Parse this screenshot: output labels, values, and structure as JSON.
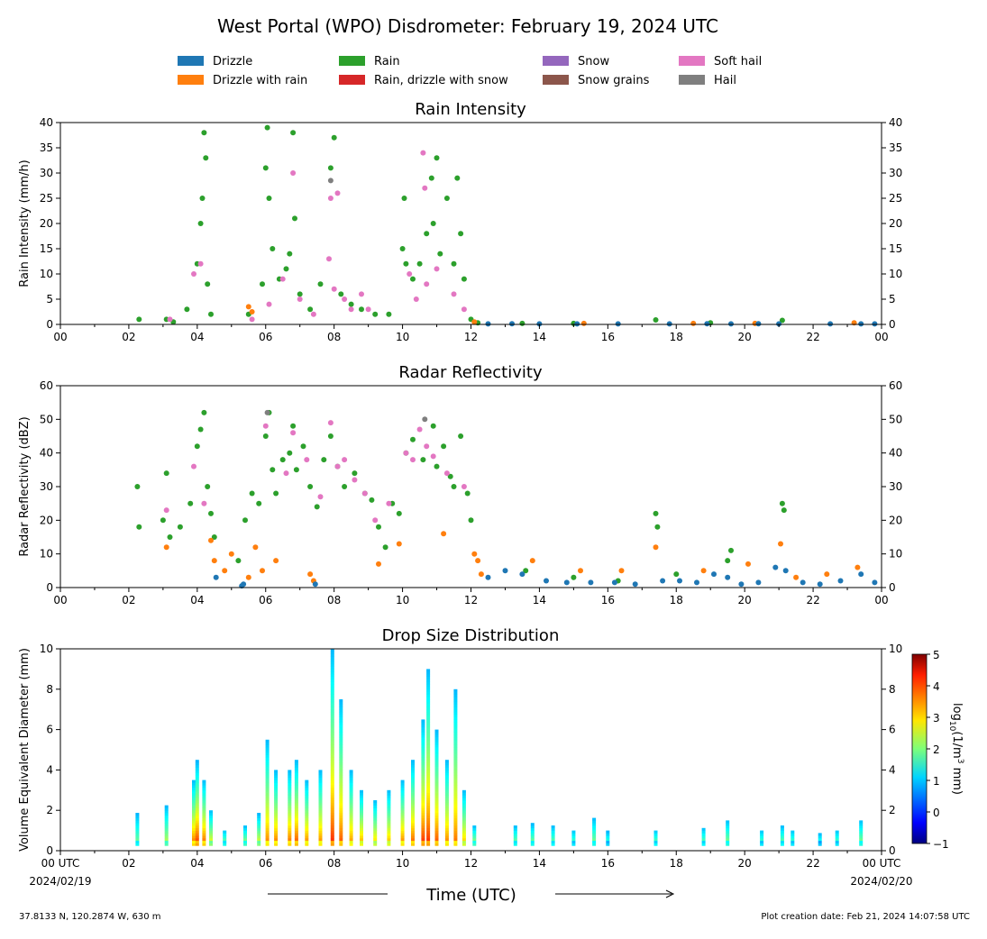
{
  "title": "West Portal (WPO) Disdrometer: February 19, 2024 UTC",
  "legend": [
    {
      "label": "Drizzle",
      "color": "#1f77b4"
    },
    {
      "label": "Drizzle with rain",
      "color": "#ff7f0e"
    },
    {
      "label": "Rain",
      "color": "#2ca02c"
    },
    {
      "label": "Rain, drizzle with snow",
      "color": "#d62728"
    },
    {
      "label": "Snow",
      "color": "#9467bd"
    },
    {
      "label": "Snow grains",
      "color": "#8c564b"
    },
    {
      "label": "Soft hail",
      "color": "#e377c2"
    },
    {
      "label": "Hail",
      "color": "#7f7f7f"
    }
  ],
  "x_ticks": [
    "00",
    "02",
    "04",
    "06",
    "08",
    "10",
    "12",
    "14",
    "16",
    "18",
    "20",
    "22",
    "00"
  ],
  "x_ticks_bottom": [
    "00 UTC",
    "02",
    "04",
    "06",
    "08",
    "10",
    "12",
    "14",
    "16",
    "18",
    "20",
    "22",
    "00 UTC"
  ],
  "x_start_date": "2024/02/19",
  "x_end_date": "2024/02/20",
  "xlabel": "Time (UTC)",
  "footer_left": "37.8133 N, 120.2874 W, 630 m",
  "footer_right": "Plot creation date: Feb 21, 2024 14:07:58 UTC",
  "chart_data": [
    {
      "type": "scatter",
      "title": "Rain Intensity",
      "ylabel": "Rain Intensity (mm/h)",
      "xlim": [
        0,
        24
      ],
      "ylim": [
        0,
        40
      ],
      "y_ticks": [
        0,
        5,
        10,
        15,
        20,
        25,
        30,
        35,
        40
      ],
      "grid": false,
      "legend_placement": "top",
      "series": [
        {
          "name": "Rain",
          "color": "#2ca02c",
          "x": [
            2.3,
            3.1,
            3.3,
            3.7,
            4.0,
            4.1,
            4.15,
            4.2,
            4.25,
            4.3,
            4.4,
            5.5,
            5.9,
            6.0,
            6.05,
            6.1,
            6.2,
            6.4,
            6.6,
            6.7,
            6.8,
            6.85,
            7.0,
            7.3,
            7.6,
            7.9,
            8.0,
            8.2,
            8.5,
            8.8,
            9.2,
            9.6,
            10.0,
            10.05,
            10.1,
            10.3,
            10.5,
            10.7,
            10.85,
            10.9,
            11.0,
            11.1,
            11.3,
            11.5,
            11.6,
            11.7,
            11.8,
            12.0,
            12.2,
            13.5,
            15.0,
            17.4,
            19.0,
            21.1
          ],
          "y": [
            1,
            1,
            0.5,
            3,
            12,
            20,
            25,
            38,
            33,
            8,
            2,
            2,
            8,
            31,
            39,
            25,
            15,
            9,
            11,
            14,
            38,
            21,
            6,
            3,
            8,
            31,
            37,
            6,
            4,
            3,
            2,
            2,
            15,
            25,
            12,
            9,
            12,
            18,
            29,
            20,
            33,
            14,
            25,
            12,
            29,
            18,
            9,
            1,
            0.3,
            0.2,
            0.2,
            0.9,
            0.3,
            0.8
          ]
        },
        {
          "name": "Soft hail",
          "color": "#e377c2",
          "x": [
            3.2,
            3.9,
            4.1,
            5.6,
            6.1,
            6.5,
            6.8,
            7.0,
            7.4,
            7.85,
            7.9,
            8.0,
            8.1,
            8.3,
            8.5,
            8.8,
            9.0,
            10.2,
            10.4,
            10.6,
            10.65,
            10.7,
            11.0,
            11.5,
            11.8
          ],
          "y": [
            1,
            10,
            12,
            1,
            4,
            9,
            30,
            5,
            2,
            13,
            25,
            7,
            26,
            5,
            3,
            6,
            3,
            10,
            5,
            34,
            27,
            8,
            11,
            6,
            3
          ]
        },
        {
          "name": "Hail",
          "color": "#7f7f7f",
          "x": [
            7.9
          ],
          "y": [
            28.5
          ]
        },
        {
          "name": "Drizzle with rain",
          "color": "#ff7f0e",
          "x": [
            5.5,
            5.6,
            12.1,
            15.3,
            18.5,
            20.3,
            23.2
          ],
          "y": [
            3.5,
            2.5,
            0.5,
            0.2,
            0.2,
            0.2,
            0.3
          ]
        },
        {
          "name": "Drizzle",
          "color": "#1f77b4",
          "x": [
            12.5,
            13.2,
            14.0,
            15.1,
            16.3,
            17.8,
            18.9,
            19.6,
            20.4,
            21.0,
            22.5,
            23.4,
            23.8
          ],
          "y": [
            0.1,
            0.15,
            0.1,
            0.1,
            0.1,
            0.1,
            0.15,
            0.1,
            0.15,
            0.1,
            0.1,
            0.1,
            0.1
          ]
        }
      ]
    },
    {
      "type": "scatter",
      "title": "Radar Reflectivity",
      "ylabel": "Radar Reflectivity (dBZ)",
      "xlim": [
        0,
        24
      ],
      "ylim": [
        0,
        60
      ],
      "y_ticks": [
        0,
        10,
        20,
        30,
        40,
        50,
        60
      ],
      "grid": false,
      "series": [
        {
          "name": "Rain",
          "color": "#2ca02c",
          "x": [
            2.25,
            2.3,
            3.0,
            3.1,
            3.2,
            3.5,
            3.8,
            4.0,
            4.1,
            4.2,
            4.3,
            4.4,
            4.5,
            5.2,
            5.4,
            5.6,
            5.8,
            6.0,
            6.1,
            6.2,
            6.3,
            6.5,
            6.7,
            6.8,
            6.9,
            7.1,
            7.3,
            7.5,
            7.7,
            7.9,
            8.1,
            8.3,
            8.6,
            8.9,
            9.1,
            9.3,
            9.5,
            9.7,
            9.9,
            10.1,
            10.3,
            10.6,
            10.9,
            11.0,
            11.2,
            11.4,
            11.5,
            11.7,
            11.9,
            12.0,
            13.6,
            15.0,
            16.3,
            17.4,
            17.45,
            18.0,
            19.5,
            19.6,
            21.1,
            21.15
          ],
          "y": [
            30,
            18,
            20,
            34,
            15,
            18,
            25,
            42,
            47,
            52,
            30,
            22,
            15,
            8,
            20,
            28,
            25,
            45,
            52,
            35,
            28,
            38,
            40,
            48,
            35,
            42,
            30,
            24,
            38,
            45,
            36,
            30,
            34,
            28,
            26,
            18,
            12,
            25,
            22,
            40,
            44,
            38,
            48,
            36,
            42,
            33,
            30,
            45,
            28,
            20,
            5,
            3,
            2,
            22,
            18,
            4,
            8,
            11,
            25,
            23
          ]
        },
        {
          "name": "Soft hail",
          "color": "#e377c2",
          "x": [
            3.1,
            3.9,
            4.2,
            6.0,
            6.6,
            6.8,
            7.2,
            7.6,
            7.9,
            8.1,
            8.3,
            8.6,
            8.9,
            9.2,
            9.6,
            10.1,
            10.3,
            10.5,
            10.7,
            10.9,
            11.3,
            11.8
          ],
          "y": [
            23,
            36,
            25,
            48,
            34,
            46,
            38,
            27,
            49,
            36,
            38,
            32,
            28,
            20,
            25,
            40,
            38,
            47,
            42,
            39,
            34,
            30
          ]
        },
        {
          "name": "Hail",
          "color": "#7f7f7f",
          "x": [
            6.05,
            10.65
          ],
          "y": [
            52,
            50
          ]
        },
        {
          "name": "Drizzle with rain",
          "color": "#ff7f0e",
          "x": [
            3.1,
            4.4,
            4.5,
            4.8,
            5.0,
            5.5,
            5.7,
            5.9,
            6.3,
            7.3,
            7.4,
            9.3,
            9.9,
            11.2,
            12.1,
            12.2,
            12.3,
            13.8,
            15.2,
            16.4,
            17.4,
            18.8,
            20.1,
            21.05,
            21.5,
            22.4,
            23.3
          ],
          "y": [
            12,
            14,
            8,
            5,
            10,
            3,
            12,
            5,
            8,
            4,
            2,
            7,
            13,
            16,
            10,
            8,
            4,
            8,
            5,
            5,
            12,
            5,
            7,
            13,
            3,
            4,
            6
          ]
        },
        {
          "name": "Drizzle",
          "color": "#1f77b4",
          "x": [
            4.55,
            5.3,
            5.35,
            7.45,
            12.5,
            13.0,
            13.5,
            14.2,
            14.8,
            15.5,
            16.2,
            16.8,
            17.6,
            18.1,
            18.6,
            19.1,
            19.5,
            19.9,
            20.4,
            20.9,
            21.2,
            21.7,
            22.2,
            22.8,
            23.4,
            23.8
          ],
          "y": [
            3,
            0.5,
            1,
            1,
            3,
            5,
            4,
            2,
            1.5,
            1.5,
            1.5,
            1,
            2,
            2,
            1.5,
            4,
            3,
            1,
            1.5,
            6,
            5,
            1.5,
            1,
            2,
            4,
            1.5
          ]
        }
      ]
    },
    {
      "type": "heatmap",
      "title": "Drop Size Distribution",
      "ylabel": "Volume Equivalent Diameter (mm)",
      "xlim": [
        0,
        24
      ],
      "ylim": [
        0,
        10
      ],
      "y_ticks": [
        0,
        2,
        4,
        6,
        8,
        10
      ],
      "colorbar": {
        "label": "log10(1/m3 mm)",
        "label_parts": [
          "log",
          "10",
          "(1/m",
          "3",
          " mm)"
        ],
        "min": -1,
        "max": 5,
        "ticks": [
          -1,
          0,
          1,
          2,
          3,
          4,
          5
        ]
      },
      "columns": [
        {
          "x": 2.25,
          "dmax": 1.8,
          "peak": 2.5
        },
        {
          "x": 3.1,
          "dmax": 2.2,
          "peak": 3.0
        },
        {
          "x": 3.9,
          "dmax": 3.5,
          "peak": 4.3
        },
        {
          "x": 4.0,
          "dmax": 4.4,
          "peak": 4.6
        },
        {
          "x": 4.2,
          "dmax": 3.5,
          "peak": 4.4
        },
        {
          "x": 4.4,
          "dmax": 2.0,
          "peak": 3.5
        },
        {
          "x": 4.8,
          "dmax": 1.0,
          "peak": 3.0
        },
        {
          "x": 5.4,
          "dmax": 1.2,
          "peak": 3.2
        },
        {
          "x": 5.8,
          "dmax": 1.8,
          "peak": 3.5
        },
        {
          "x": 6.05,
          "dmax": 5.5,
          "peak": 4.0
        },
        {
          "x": 6.3,
          "dmax": 4.0,
          "peak": 4.2
        },
        {
          "x": 6.7,
          "dmax": 4.0,
          "peak": 4.3
        },
        {
          "x": 6.9,
          "dmax": 4.5,
          "peak": 4.4
        },
        {
          "x": 7.2,
          "dmax": 3.5,
          "peak": 4.2
        },
        {
          "x": 7.6,
          "dmax": 4.0,
          "peak": 4.1
        },
        {
          "x": 7.95,
          "dmax": 10.0,
          "peak": 4.4
        },
        {
          "x": 8.2,
          "dmax": 7.5,
          "peak": 4.2
        },
        {
          "x": 8.5,
          "dmax": 4.0,
          "peak": 4.0
        },
        {
          "x": 8.8,
          "dmax": 3.0,
          "peak": 4.0
        },
        {
          "x": 9.2,
          "dmax": 2.5,
          "peak": 3.8
        },
        {
          "x": 9.6,
          "dmax": 3.0,
          "peak": 3.9
        },
        {
          "x": 10.0,
          "dmax": 3.5,
          "peak": 4.2
        },
        {
          "x": 10.3,
          "dmax": 4.5,
          "peak": 4.3
        },
        {
          "x": 10.6,
          "dmax": 6.5,
          "peak": 4.5
        },
        {
          "x": 10.75,
          "dmax": 9.0,
          "peak": 4.4
        },
        {
          "x": 11.0,
          "dmax": 6.0,
          "peak": 4.3
        },
        {
          "x": 11.3,
          "dmax": 4.5,
          "peak": 4.1
        },
        {
          "x": 11.55,
          "dmax": 8.0,
          "peak": 4.0
        },
        {
          "x": 11.8,
          "dmax": 3.0,
          "peak": 3.8
        },
        {
          "x": 12.1,
          "dmax": 1.2,
          "peak": 3.2
        },
        {
          "x": 13.3,
          "dmax": 1.2,
          "peak": 2.8
        },
        {
          "x": 13.8,
          "dmax": 1.3,
          "peak": 2.8
        },
        {
          "x": 14.4,
          "dmax": 1.2,
          "peak": 2.7
        },
        {
          "x": 15.0,
          "dmax": 1.0,
          "peak": 2.6
        },
        {
          "x": 15.6,
          "dmax": 1.6,
          "peak": 2.7
        },
        {
          "x": 16.0,
          "dmax": 0.9,
          "peak": 2.5
        },
        {
          "x": 17.4,
          "dmax": 1.0,
          "peak": 2.8
        },
        {
          "x": 18.8,
          "dmax": 1.1,
          "peak": 2.7
        },
        {
          "x": 19.5,
          "dmax": 1.5,
          "peak": 2.8
        },
        {
          "x": 20.5,
          "dmax": 1.0,
          "peak": 2.6
        },
        {
          "x": 21.1,
          "dmax": 1.2,
          "peak": 2.7
        },
        {
          "x": 21.4,
          "dmax": 1.0,
          "peak": 2.6
        },
        {
          "x": 22.2,
          "dmax": 0.8,
          "peak": 2.5
        },
        {
          "x": 22.7,
          "dmax": 1.0,
          "peak": 2.6
        },
        {
          "x": 23.4,
          "dmax": 1.5,
          "peak": 2.8
        }
      ]
    }
  ]
}
